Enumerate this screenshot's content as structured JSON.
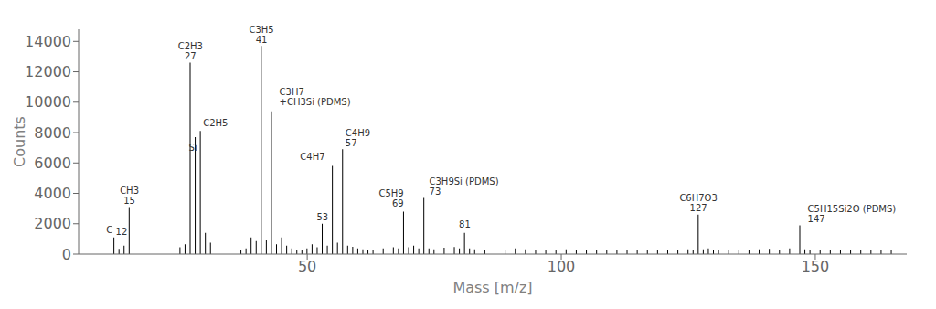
{
  "chart_data": {
    "type": "stem",
    "xlabel": "Mass [m/z]",
    "ylabel": "Counts",
    "xlim": [
      5,
      168
    ],
    "ylim": [
      0,
      14800
    ],
    "xticks": [
      50,
      100,
      150
    ],
    "yticks": [
      0,
      2000,
      4000,
      6000,
      8000,
      10000,
      12000,
      14000
    ],
    "series": [
      {
        "color": "#000000",
        "x": [
          13,
          14,
          25,
          26,
          30,
          31,
          37,
          38,
          39,
          40,
          42,
          44,
          45,
          46,
          47,
          48,
          49,
          50,
          51,
          52,
          54,
          56,
          58,
          59,
          60,
          61,
          62,
          63,
          65,
          67,
          68,
          70,
          71,
          72,
          74,
          75,
          77,
          79,
          80,
          82,
          83,
          85,
          87,
          89,
          91,
          93,
          95,
          97,
          99,
          101,
          103,
          105,
          107,
          109,
          111,
          113,
          115,
          117,
          119,
          121,
          123,
          125,
          126,
          128,
          129,
          130,
          131,
          133,
          135,
          137,
          139,
          141,
          143,
          145,
          148,
          149,
          151,
          153,
          155,
          157,
          159,
          161,
          163,
          165
        ],
        "values": [
          350,
          550,
          450,
          650,
          1400,
          750,
          280,
          380,
          1100,
          850,
          950,
          650,
          1100,
          550,
          380,
          280,
          280,
          380,
          650,
          450,
          550,
          750,
          550,
          480,
          380,
          320,
          280,
          280,
          380,
          450,
          380,
          450,
          550,
          380,
          380,
          320,
          420,
          470,
          380,
          380,
          320,
          280,
          320,
          280,
          370,
          320,
          280,
          260,
          260,
          320,
          280,
          260,
          280,
          260,
          260,
          280,
          260,
          280,
          260,
          280,
          280,
          320,
          280,
          320,
          370,
          280,
          260,
          280,
          260,
          280,
          320,
          350,
          280,
          370,
          320,
          280,
          260,
          260,
          280,
          260,
          260,
          260,
          260,
          260
        ]
      },
      {
        "color": "#000000",
        "x": [
          12,
          15,
          27,
          28,
          29,
          41,
          43,
          53,
          55,
          57,
          69,
          73,
          81,
          127,
          147
        ],
        "values": [
          1100,
          3100,
          12600,
          7700,
          8100,
          13700,
          9400,
          2000,
          5800,
          6900,
          2800,
          3700,
          1400,
          2600,
          1900
        ]
      }
    ],
    "annotations": [
      {
        "x": 11.7,
        "y": 1250,
        "lines": [
          "C"
        ],
        "align": "right"
      },
      {
        "x": 12.3,
        "y": 1150,
        "lines": [
          "12"
        ],
        "align": "left"
      },
      {
        "x": 15,
        "y": 3200,
        "lines": [
          "CH3",
          "15"
        ],
        "align": "center"
      },
      {
        "x": 27,
        "y": 12700,
        "lines": [
          "C2H3",
          "27"
        ],
        "align": "center"
      },
      {
        "x": 29.5,
        "y": 8300,
        "lines": [
          "C2H5"
        ],
        "align": "left"
      },
      {
        "x": 27.5,
        "y": 6700,
        "lines": [
          "Si"
        ],
        "align": "center"
      },
      {
        "x": 41,
        "y": 13800,
        "lines": [
          "C3H5",
          "41"
        ],
        "align": "center"
      },
      {
        "x": 44.5,
        "y": 9700,
        "lines": [
          "C3H7",
          "+CH3Si (PDMS)"
        ],
        "align": "left"
      },
      {
        "x": 53,
        "y": 2100,
        "lines": [
          "53"
        ],
        "align": "center"
      },
      {
        "x": 53.5,
        "y": 6100,
        "lines": [
          "C4H7"
        ],
        "align": "right"
      },
      {
        "x": 57.5,
        "y": 7000,
        "lines": [
          "C4H9",
          "57"
        ],
        "align": "left"
      },
      {
        "x": 69,
        "y": 3000,
        "lines": [
          "C5H9",
          "69"
        ],
        "align": "right"
      },
      {
        "x": 74,
        "y": 3800,
        "lines": [
          "C3H9Si (PDMS)",
          "73"
        ],
        "align": "left"
      },
      {
        "x": 81,
        "y": 1600,
        "lines": [
          "81"
        ],
        "align": "center"
      },
      {
        "x": 127,
        "y": 2700,
        "lines": [
          "C6H7O3",
          "127"
        ],
        "align": "center"
      },
      {
        "x": 148.5,
        "y": 2000,
        "lines": [
          "C5H15Si2O (PDMS)",
          "147"
        ],
        "align": "left"
      }
    ]
  }
}
